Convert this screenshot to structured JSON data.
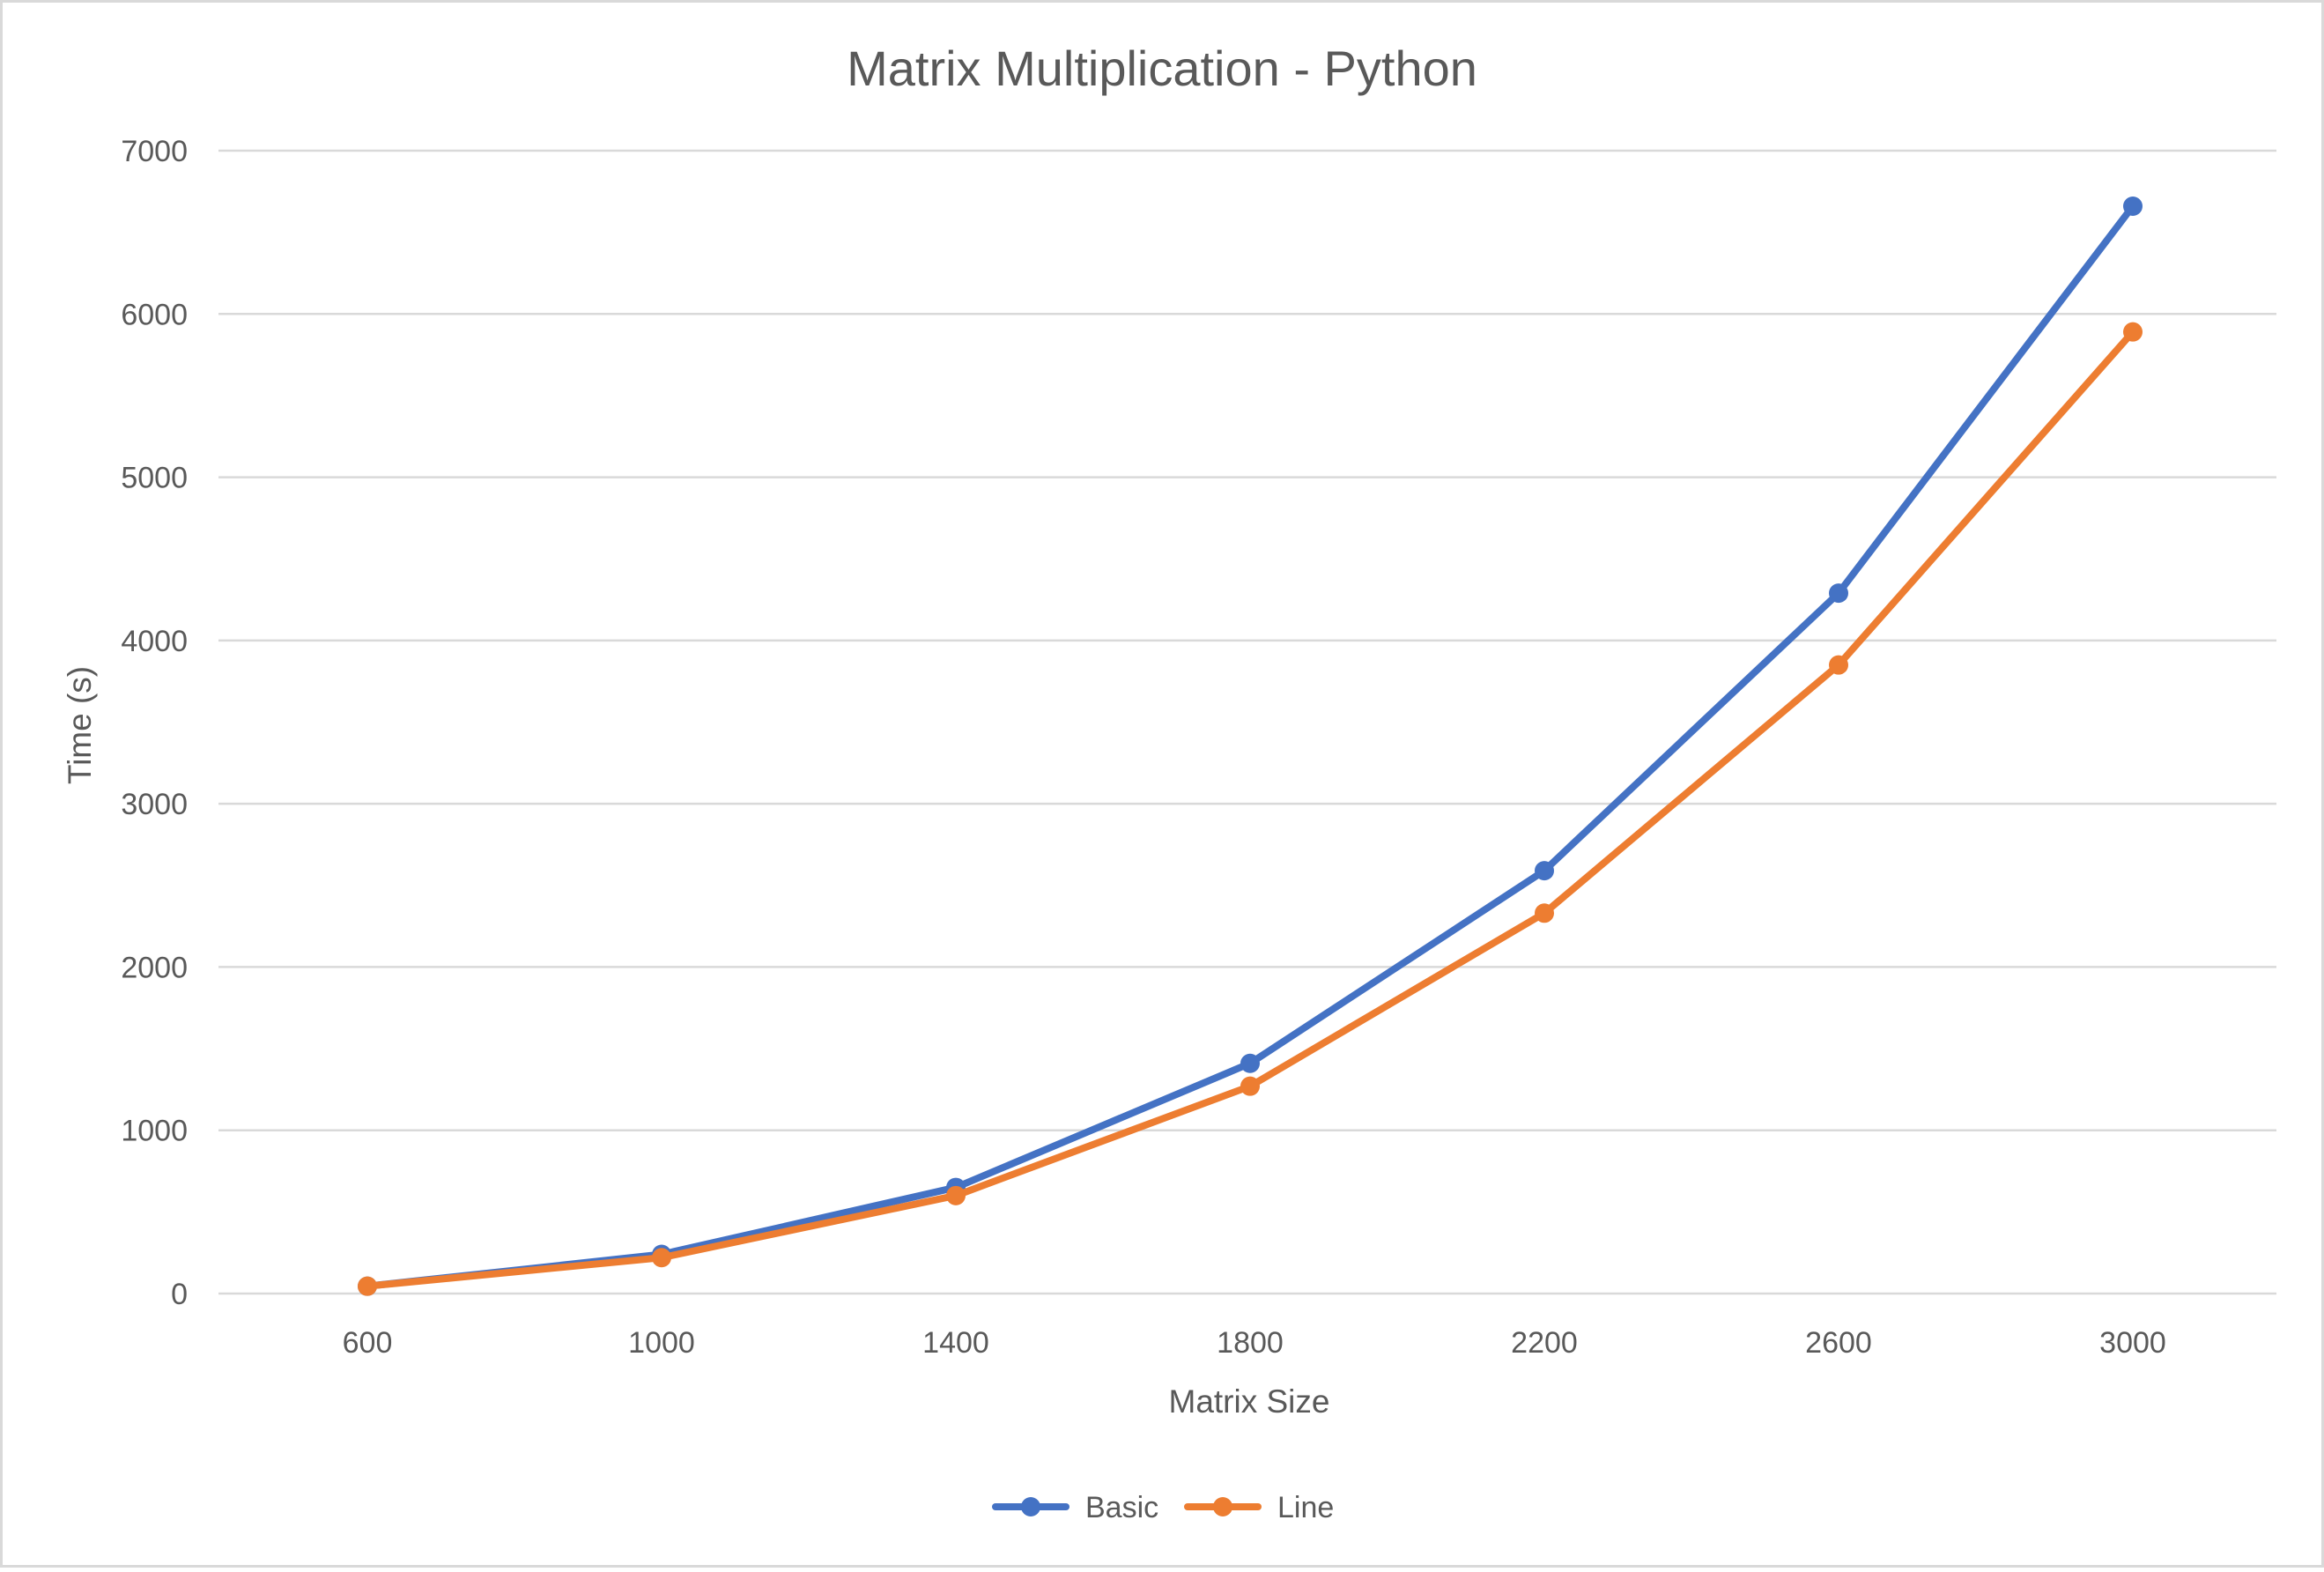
{
  "chart_data": {
    "type": "line",
    "title": "Matrix Multiplication - Python",
    "xlabel": "Matrix Size",
    "ylabel": "Time (s)",
    "categories": [
      "600",
      "1000",
      "1400",
      "1800",
      "2200",
      "2600",
      "3000"
    ],
    "y_ticks": [
      "0",
      "1000",
      "2000",
      "3000",
      "4000",
      "5000",
      "6000",
      "7000"
    ],
    "ylim": [
      0,
      7000
    ],
    "grid": true,
    "legend_position": "bottom",
    "series": [
      {
        "name": "Basic",
        "color": "#4472C4",
        "marker": "circle",
        "values": [
          45,
          240,
          650,
          1410,
          2590,
          4290,
          6660
        ]
      },
      {
        "name": "Line",
        "color": "#ED7D31",
        "marker": "circle",
        "values": [
          45,
          220,
          600,
          1270,
          2330,
          3850,
          5890
        ]
      }
    ]
  }
}
